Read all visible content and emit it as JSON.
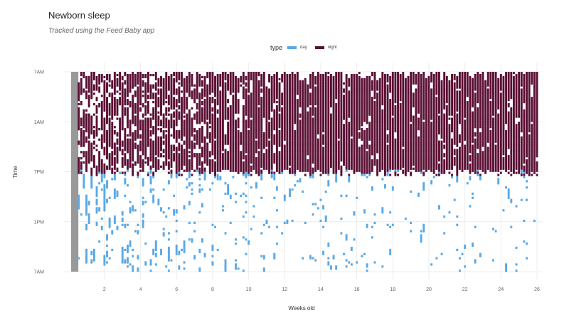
{
  "header": {
    "title": "Newborn sleep",
    "subtitle": "Tracked using the Feed Baby app"
  },
  "legend": {
    "title": "type",
    "items": [
      {
        "label": "day",
        "color": "#5aa9e6"
      },
      {
        "label": "night",
        "color": "#5b0f34"
      }
    ]
  },
  "colors": {
    "day": "#5aa9e6",
    "night": "#5b0f34",
    "untracked": "#999999",
    "grid": "#ececec"
  },
  "chart_data": {
    "type": "heatmap",
    "description_mode": "actogram",
    "xlabel": "Weeks old",
    "ylabel": "Time",
    "x_range": [
      0.15,
      26
    ],
    "x_ticks": [
      2,
      4,
      6,
      8,
      10,
      12,
      14,
      16,
      18,
      20,
      22,
      24,
      26
    ],
    "y_ticks": [
      "7AM",
      "1AM",
      "7PM",
      "1PM",
      "7AM"
    ],
    "untracked_period_weeks": [
      0.15,
      0.55
    ],
    "series": [
      {
        "name": "night",
        "time_window": "7PM-7AM",
        "coverage_by_week": [
          0.62,
          0.7,
          0.7,
          0.68,
          0.7,
          0.72,
          0.74,
          0.76,
          0.78,
          0.78,
          0.8,
          0.8,
          0.82,
          0.83,
          0.84,
          0.84,
          0.85,
          0.85,
          0.86,
          0.86,
          0.87,
          0.87,
          0.87,
          0.88,
          0.88,
          0.88
        ]
      },
      {
        "name": "day",
        "time_window": "7AM-7PM",
        "coverage_by_week": [
          0.45,
          0.44,
          0.42,
          0.4,
          0.38,
          0.34,
          0.3,
          0.27,
          0.24,
          0.22,
          0.2,
          0.19,
          0.18,
          0.17,
          0.16,
          0.15,
          0.15,
          0.14,
          0.14,
          0.13,
          0.13,
          0.13,
          0.12,
          0.12,
          0.12,
          0.12
        ]
      }
    ]
  }
}
